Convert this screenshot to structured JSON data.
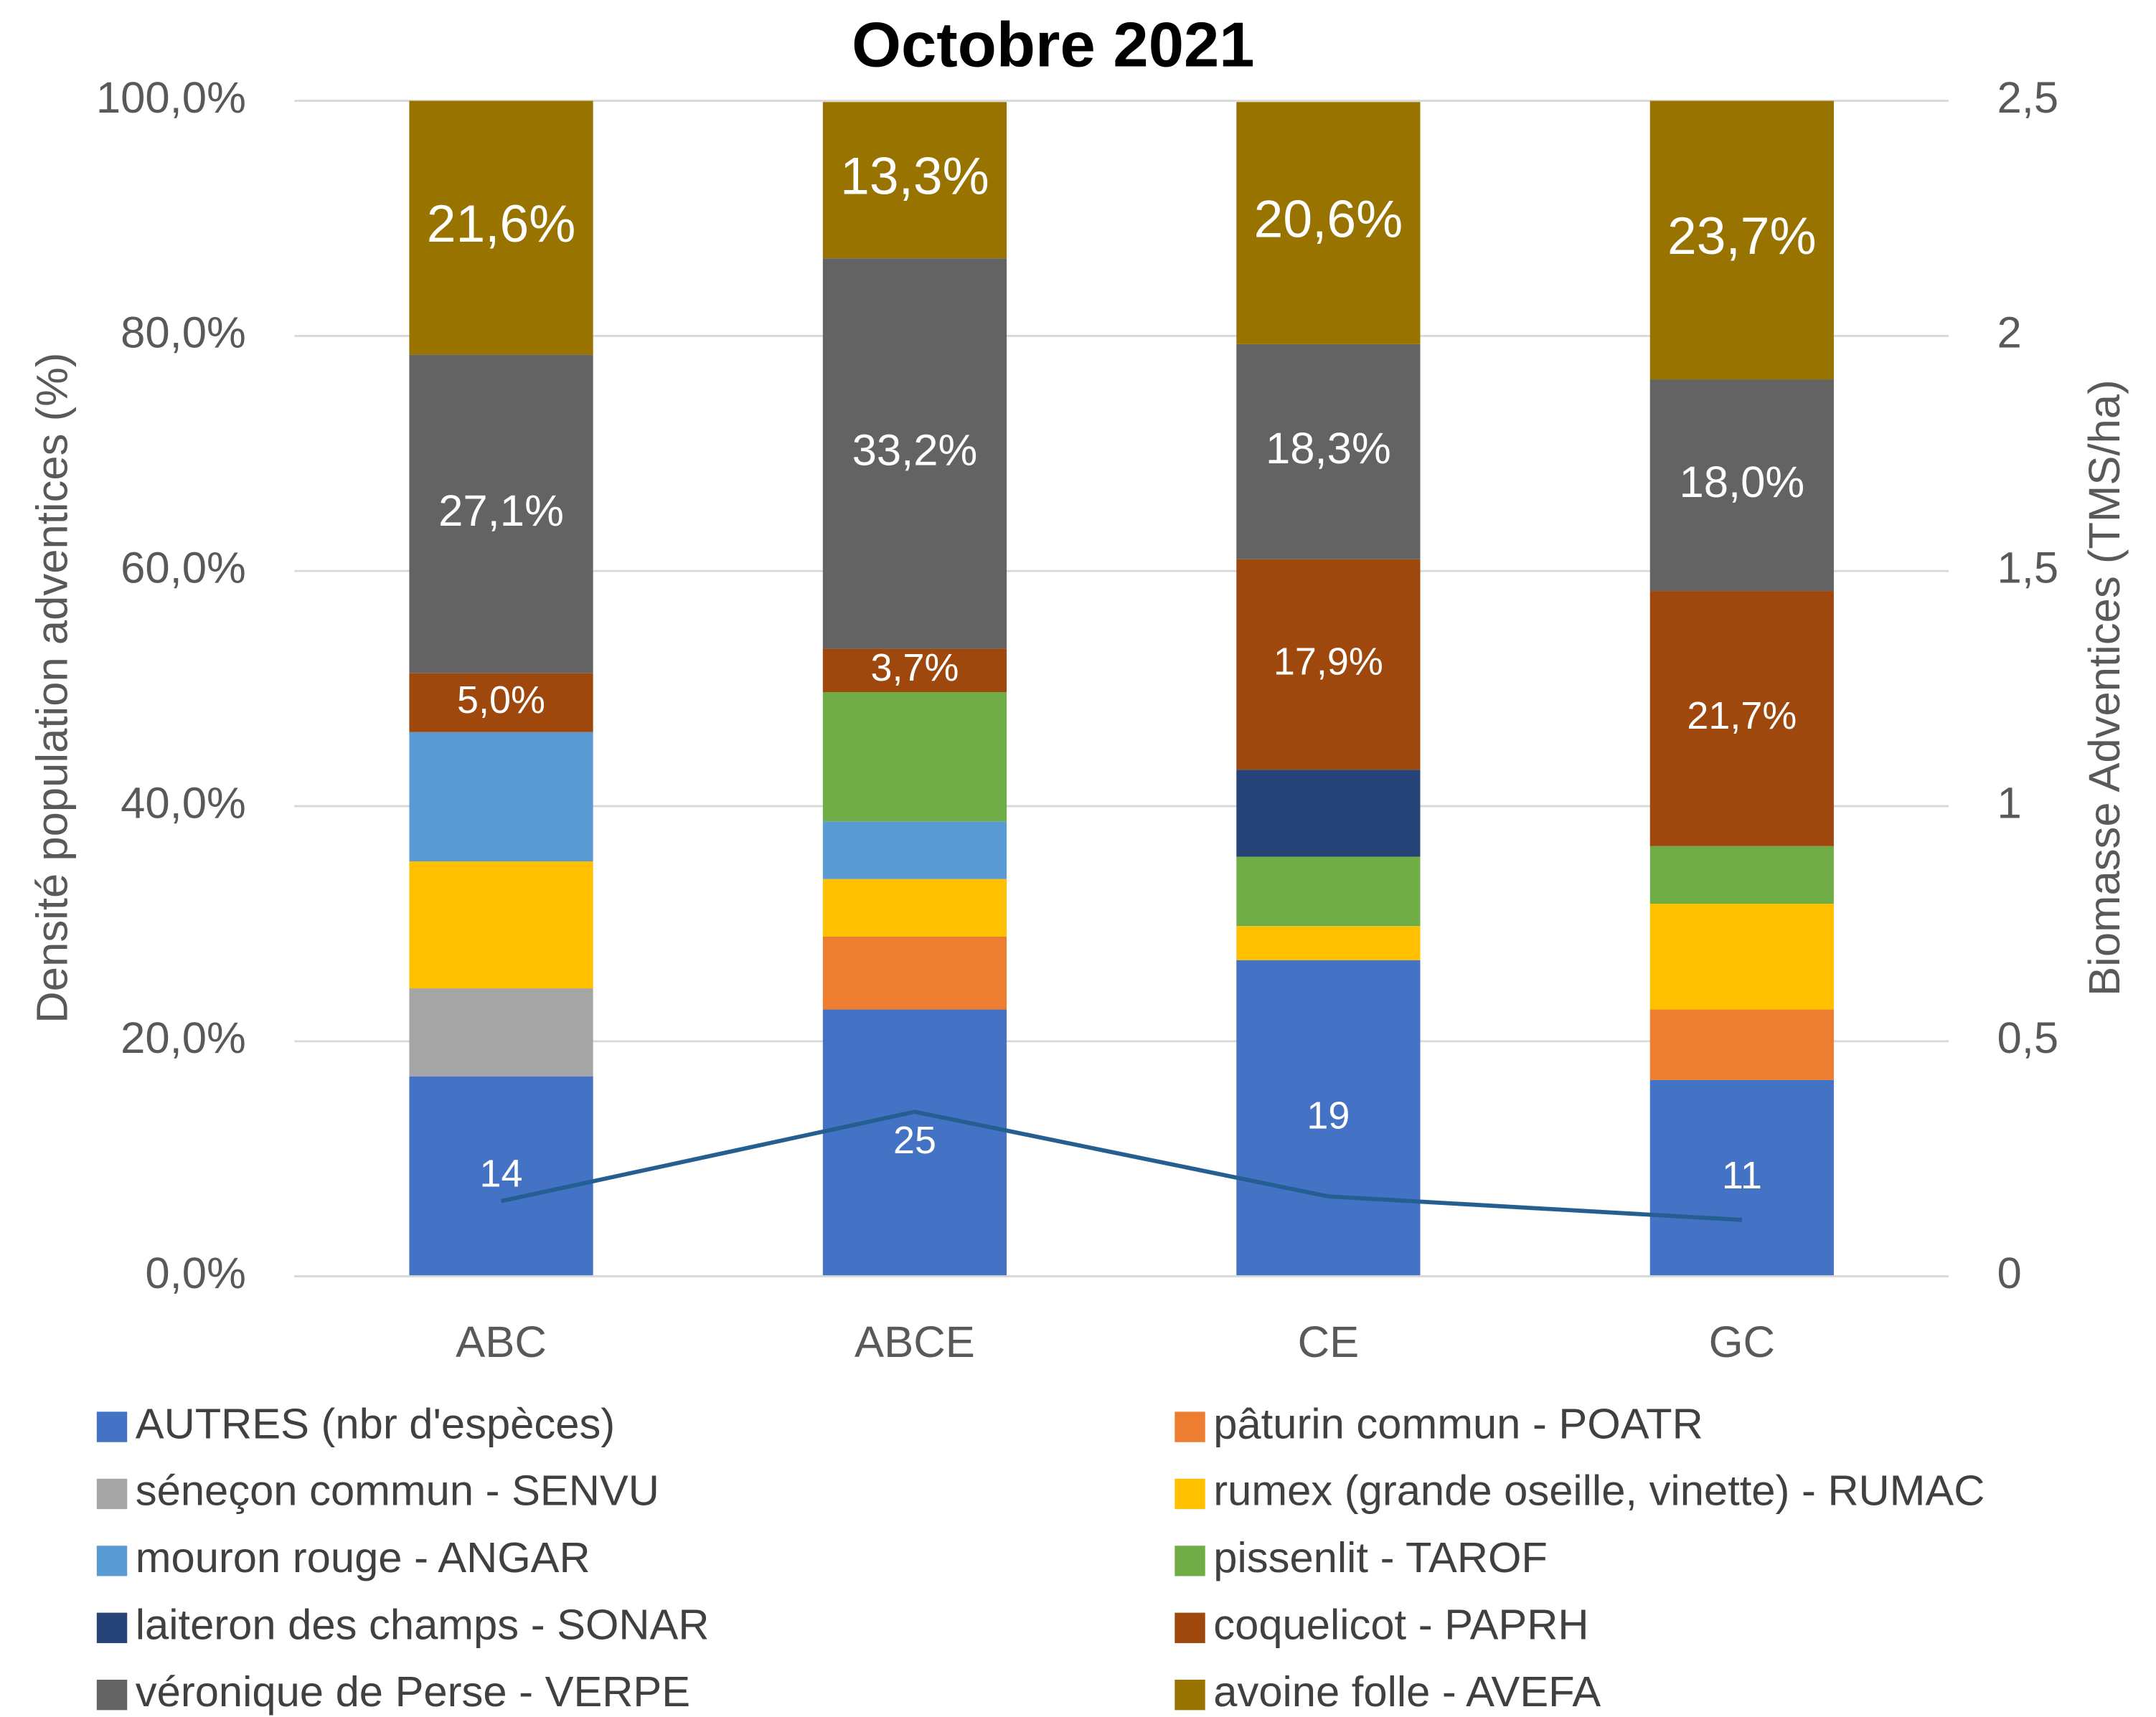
{
  "chart_data": {
    "type": "bar",
    "stacked": true,
    "title": "Octobre 2021",
    "ylabel": "Densité population adventices (%)",
    "y2label": "Biomasse Adventices (TMS/ha)",
    "categories": [
      "ABC",
      "ABCE",
      "CE",
      "GC"
    ],
    "ylim": [
      0,
      100
    ],
    "yticks": [
      {
        "value": 0,
        "label": "0,0%"
      },
      {
        "value": 20,
        "label": "20,0%"
      },
      {
        "value": 40,
        "label": "40,0%"
      },
      {
        "value": 60,
        "label": "60,0%"
      },
      {
        "value": 80,
        "label": "80,0%"
      },
      {
        "value": 100,
        "label": "100,0%"
      }
    ],
    "y2lim": [
      0,
      2.5
    ],
    "y2ticks": [
      0,
      {
        "value": 0.5,
        "label": "0,5"
      },
      1,
      {
        "value": 1.5,
        "label": "1,5"
      },
      2,
      {
        "value": 2.5,
        "label": "2,5"
      }
    ],
    "grid": true,
    "legend": "bottom",
    "series": [
      {
        "name": "AUTRES (nbr d'espèces)",
        "color": "#4472c4",
        "values": [
          17.0,
          22.7,
          26.9,
          16.7
        ],
        "counts": [
          14,
          25,
          19,
          11
        ]
      },
      {
        "name": "pâturin commun - POATR",
        "color": "#ed7d31",
        "values": [
          0,
          6.2,
          0,
          6.0
        ]
      },
      {
        "name": "séneçon commun - SENVU",
        "color": "#a5a5a5",
        "values": [
          7.5,
          0,
          0,
          0
        ]
      },
      {
        "name": "rumex (grande oseille, vinette) - RUMAC",
        "color": "#ffc000",
        "values": [
          10.8,
          4.9,
          2.9,
          9.0
        ]
      },
      {
        "name": "mouron rouge - ANGAR",
        "color": "#5b9bd5",
        "values": [
          11.0,
          4.9,
          0,
          0
        ]
      },
      {
        "name": "pissenlit - TAROF",
        "color": "#70ad47",
        "values": [
          0,
          11.0,
          5.9,
          4.9
        ]
      },
      {
        "name": "laiteron des champs - SONAR",
        "color": "#264478",
        "values": [
          0,
          0,
          7.4,
          0
        ]
      },
      {
        "name": "coquelicot - PAPRH",
        "color": "#9e480e",
        "values": [
          5.0,
          3.7,
          17.9,
          21.7
        ],
        "value_labels": [
          "5,0%",
          "3,7%",
          "17,9%",
          "21,7%"
        ]
      },
      {
        "name": "véronique de Perse - VERPE",
        "color": "#636363",
        "values": [
          27.1,
          33.2,
          18.3,
          18.0
        ],
        "value_labels": [
          "27,1%",
          "33,2%",
          "18,3%",
          "18,0%"
        ]
      },
      {
        "name": "avoine folle - AVEFA",
        "color": "#997300",
        "values": [
          21.6,
          13.3,
          20.6,
          23.7
        ],
        "value_labels": [
          "21,6%",
          "13,3%",
          "20,6%",
          "23,7%"
        ]
      }
    ],
    "line": {
      "type": "line",
      "axis": "y2",
      "color": "#255e91",
      "values": [
        0.16,
        0.35,
        0.17,
        0.12
      ]
    }
  }
}
